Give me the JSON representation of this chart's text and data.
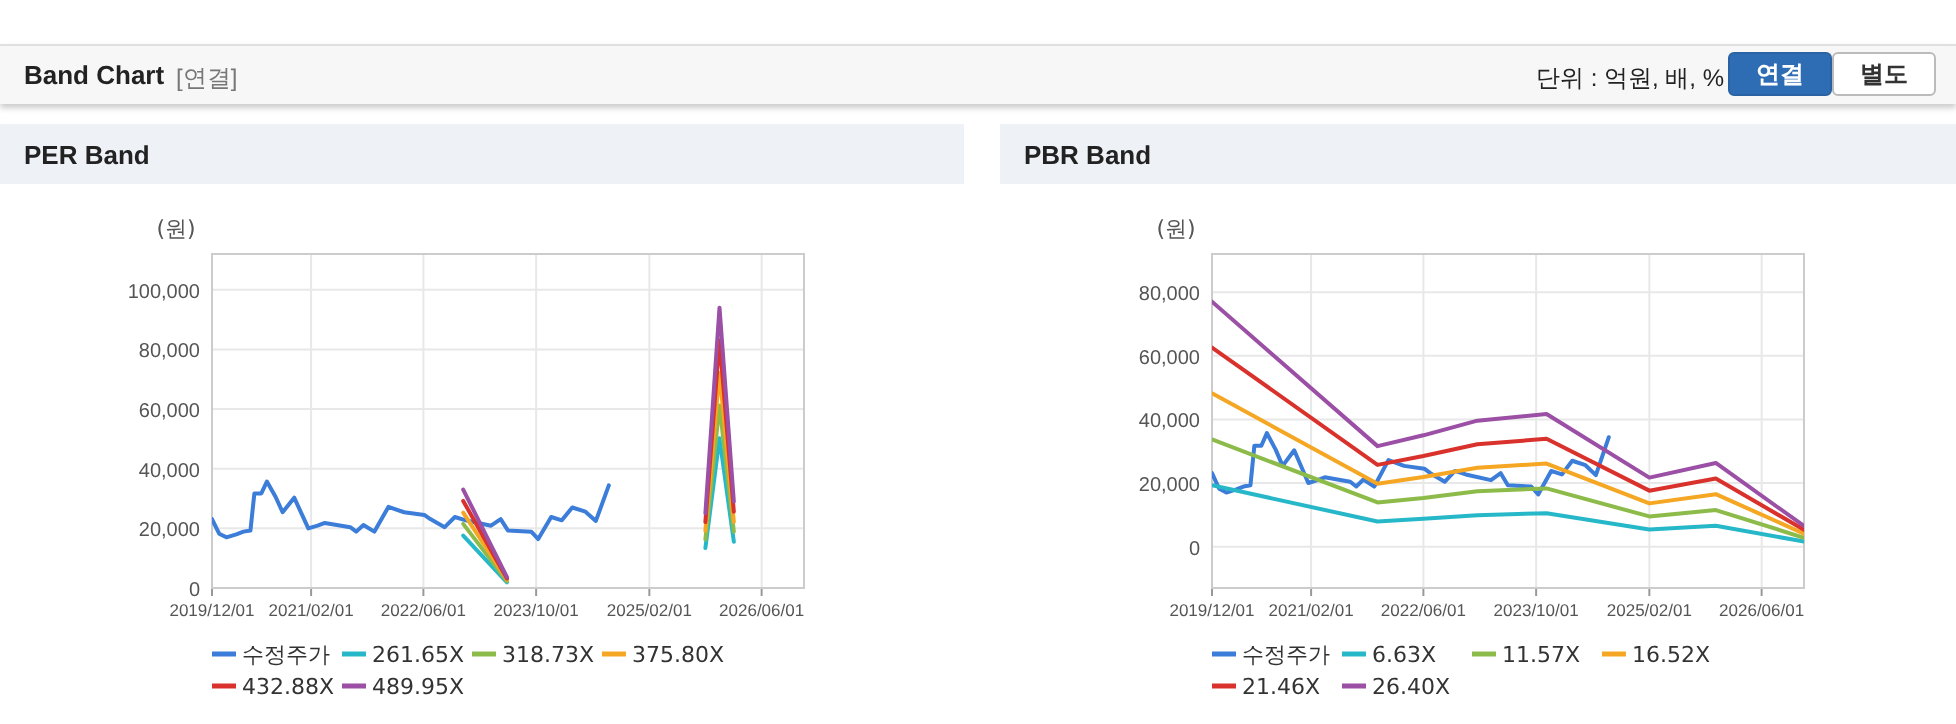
{
  "chart_data": [
    {
      "type": "other",
      "title": "Band Chart",
      "subtitle": "[연결]",
      "annotations": [
        "단위 : 억원, 배, %",
        "연결",
        "별도"
      ]
    },
    {
      "type": "line",
      "title": "PER Band",
      "ylabel": "(원)",
      "xlim": [
        "2019-12-01",
        "2026-12-01"
      ],
      "ylim": [
        0,
        112000
      ],
      "xticks": [
        {
          "value": "2019-12-01",
          "label": "2019/12/01"
        },
        {
          "value": "2021-02-01",
          "label": "2021/02/01"
        },
        {
          "value": "2022-06-01",
          "label": "2022/06/01"
        },
        {
          "value": "2023-10-01",
          "label": "2023/10/01"
        },
        {
          "value": "2025-02-01",
          "label": "2025/02/01"
        },
        {
          "value": "2026-06-01",
          "label": "2026/06/01"
        }
      ],
      "yticks": [
        0,
        {
          "value": 20000,
          "label": "20,000"
        },
        {
          "value": 40000,
          "label": "40,000"
        },
        {
          "value": 60000,
          "label": "60,000"
        },
        {
          "value": 80000,
          "label": "80,000"
        },
        {
          "value": 100000,
          "label": "100,000"
        }
      ],
      "grid": true,
      "legend": "bottom",
      "marker": "none",
      "line_style": "solid",
      "series": [
        {
          "name": "수정주가",
          "color": "#3b7dd8",
          "x": [
            "2019-12-01",
            "2020-01-01",
            "2020-02-01",
            "2020-03-15",
            "2020-04-15",
            "2020-05-15",
            "2020-06-01",
            "2020-07-01",
            "2020-07-25",
            "2020-09-01",
            "2020-10-01",
            "2020-11-20",
            "2021-01-20",
            "2021-03-01",
            "2021-04-01",
            "2021-07-20",
            "2021-08-15",
            "2021-09-15",
            "2021-11-01",
            "2022-01-01",
            "2022-03-10",
            "2022-06-05",
            "2022-07-01",
            "2022-09-01",
            "2022-10-15",
            "2022-12-01",
            "2023-03-20",
            "2023-05-01",
            "2023-06-01",
            "2023-09-10",
            "2023-10-10",
            "2023-12-05",
            "2024-01-20",
            "2024-03-05",
            "2024-05-01",
            "2024-06-15",
            "2024-08-10"
          ],
          "values": [
            23100,
            18200,
            17000,
            18000,
            18900,
            19300,
            31700,
            31700,
            35700,
            30500,
            25400,
            30300,
            20000,
            20900,
            21800,
            20400,
            18900,
            21100,
            18900,
            27200,
            25400,
            24500,
            23100,
            20400,
            23800,
            22700,
            20900,
            23100,
            19300,
            18900,
            16400,
            23800,
            22700,
            27000,
            25600,
            22500,
            34400
          ]
        },
        {
          "name": "261.65X",
          "color": "#26b8c8",
          "x": [
            "2022-11-20",
            "2023-05-28"
          ],
          "values": [
            17600,
            1900
          ]
        },
        {
          "name": "318.73X",
          "color": "#8dbb4a",
          "x": [
            "2022-11-20",
            "2023-05-28"
          ],
          "values": [
            21500,
            2300
          ]
        },
        {
          "name": "375.80X",
          "color": "#f5a623",
          "x": [
            "2022-11-20",
            "2023-05-28"
          ],
          "values": [
            25300,
            2800
          ]
        },
        {
          "name": "432.88X",
          "color": "#d9312b",
          "x": [
            "2022-11-20",
            "2023-05-28"
          ],
          "values": [
            29200,
            3200
          ]
        },
        {
          "name": "489.95X",
          "color": "#9b4fa5",
          "x": [
            "2022-11-20",
            "2023-05-28"
          ],
          "values": [
            33000,
            3600
          ]
        },
        {
          "color": "#26b8c8",
          "x": [
            "2025-10-01",
            "2025-12-01",
            "2026-02-01"
          ],
          "values": [
            13400,
            50200,
            15500
          ]
        },
        {
          "color": "#8dbb4a",
          "x": [
            "2025-10-01",
            "2025-12-01",
            "2026-02-01"
          ],
          "values": [
            16300,
            61200,
            18900
          ]
        },
        {
          "color": "#f5a623",
          "x": [
            "2025-10-01",
            "2025-12-01",
            "2026-02-01"
          ],
          "values": [
            19200,
            72100,
            22200
          ]
        },
        {
          "color": "#d9312b",
          "x": [
            "2025-10-01",
            "2025-12-01",
            "2026-02-01"
          ],
          "values": [
            22100,
            83100,
            25600
          ]
        },
        {
          "color": "#9b4fa5",
          "x": [
            "2025-10-01",
            "2025-12-01",
            "2026-02-01"
          ],
          "values": [
            25000,
            94000,
            29000
          ]
        }
      ]
    },
    {
      "type": "line",
      "title": "PBR Band",
      "ylabel": "(원)",
      "xlim": [
        "2019-12-01",
        "2026-12-01"
      ],
      "ylim": [
        -13000,
        92000
      ],
      "xticks": [
        {
          "value": "2019-12-01",
          "label": "2019/12/01"
        },
        {
          "value": "2021-02-01",
          "label": "2021/02/01"
        },
        {
          "value": "2022-06-01",
          "label": "2022/06/01"
        },
        {
          "value": "2023-10-01",
          "label": "2023/10/01"
        },
        {
          "value": "2025-02-01",
          "label": "2025/02/01"
        },
        {
          "value": "2026-06-01",
          "label": "2026/06/01"
        }
      ],
      "yticks": [
        0,
        {
          "value": 20000,
          "label": "20,000"
        },
        {
          "value": 40000,
          "label": "40,000"
        },
        {
          "value": 60000,
          "label": "60,000"
        },
        {
          "value": 80000,
          "label": "80,000"
        }
      ],
      "grid": true,
      "legend": "bottom",
      "marker": "none",
      "line_style": "solid",
      "series": [
        {
          "name": "수정주가",
          "color": "#3b7dd8",
          "x": [
            "2019-12-01",
            "2020-01-01",
            "2020-02-01",
            "2020-03-15",
            "2020-04-15",
            "2020-05-15",
            "2020-06-01",
            "2020-07-01",
            "2020-07-25",
            "2020-09-01",
            "2020-10-01",
            "2020-11-20",
            "2021-01-20",
            "2021-03-01",
            "2021-04-01",
            "2021-07-20",
            "2021-08-15",
            "2021-09-15",
            "2021-11-01",
            "2022-01-01",
            "2022-03-10",
            "2022-06-05",
            "2022-07-01",
            "2022-09-01",
            "2022-10-15",
            "2022-12-01",
            "2023-03-20",
            "2023-05-01",
            "2023-06-01",
            "2023-09-10",
            "2023-10-10",
            "2023-12-05",
            "2024-01-20",
            "2024-03-05",
            "2024-05-01",
            "2024-06-15",
            "2024-08-10"
          ],
          "values": [
            23100,
            18200,
            17000,
            18000,
            18900,
            19300,
            31700,
            31700,
            35700,
            30500,
            25400,
            30300,
            20000,
            20900,
            21800,
            20400,
            18900,
            21100,
            18900,
            27200,
            25400,
            24500,
            23100,
            20400,
            23800,
            22700,
            20900,
            23100,
            19300,
            18900,
            16400,
            23800,
            22700,
            27000,
            25600,
            22500,
            34400
          ]
        },
        {
          "name": "6.63X",
          "color": "#26b8c8",
          "x": [
            "2019-12-01",
            "2021-11-15",
            "2022-06-01",
            "2023-01-20",
            "2023-11-15",
            "2025-02-01",
            "2025-11-15",
            "2026-12-01"
          ],
          "values": [
            19300,
            7900,
            8800,
            9900,
            10500,
            5400,
            6600,
            1600
          ]
        },
        {
          "name": "11.57X",
          "color": "#8dbb4a",
          "x": [
            "2019-12-01",
            "2021-11-15",
            "2022-06-01",
            "2023-01-20",
            "2023-11-15",
            "2025-02-01",
            "2025-11-15",
            "2026-12-01"
          ],
          "values": [
            33700,
            13900,
            15300,
            17400,
            18300,
            9500,
            11500,
            2800
          ]
        },
        {
          "name": "16.52X",
          "color": "#f5a623",
          "x": [
            "2019-12-01",
            "2021-11-15",
            "2022-06-01",
            "2023-01-20",
            "2023-11-15",
            "2025-02-01",
            "2025-11-15",
            "2026-12-01"
          ],
          "values": [
            48200,
            19800,
            21900,
            24800,
            26100,
            13600,
            16500,
            4100
          ]
        },
        {
          "name": "21.46X",
          "color": "#d9312b",
          "x": [
            "2019-12-01",
            "2021-11-15",
            "2022-06-01",
            "2023-01-20",
            "2023-11-15",
            "2025-02-01",
            "2025-11-15",
            "2026-12-01"
          ],
          "values": [
            62600,
            25700,
            28500,
            32200,
            33900,
            17600,
            21400,
            5300
          ]
        },
        {
          "name": "26.40X",
          "color": "#9b4fa5",
          "x": [
            "2019-12-01",
            "2021-11-15",
            "2022-06-01",
            "2023-01-20",
            "2023-11-15",
            "2025-02-01",
            "2025-11-15",
            "2026-12-01"
          ],
          "values": [
            77000,
            31600,
            35000,
            39600,
            41700,
            21700,
            26300,
            6500
          ]
        }
      ]
    }
  ]
}
